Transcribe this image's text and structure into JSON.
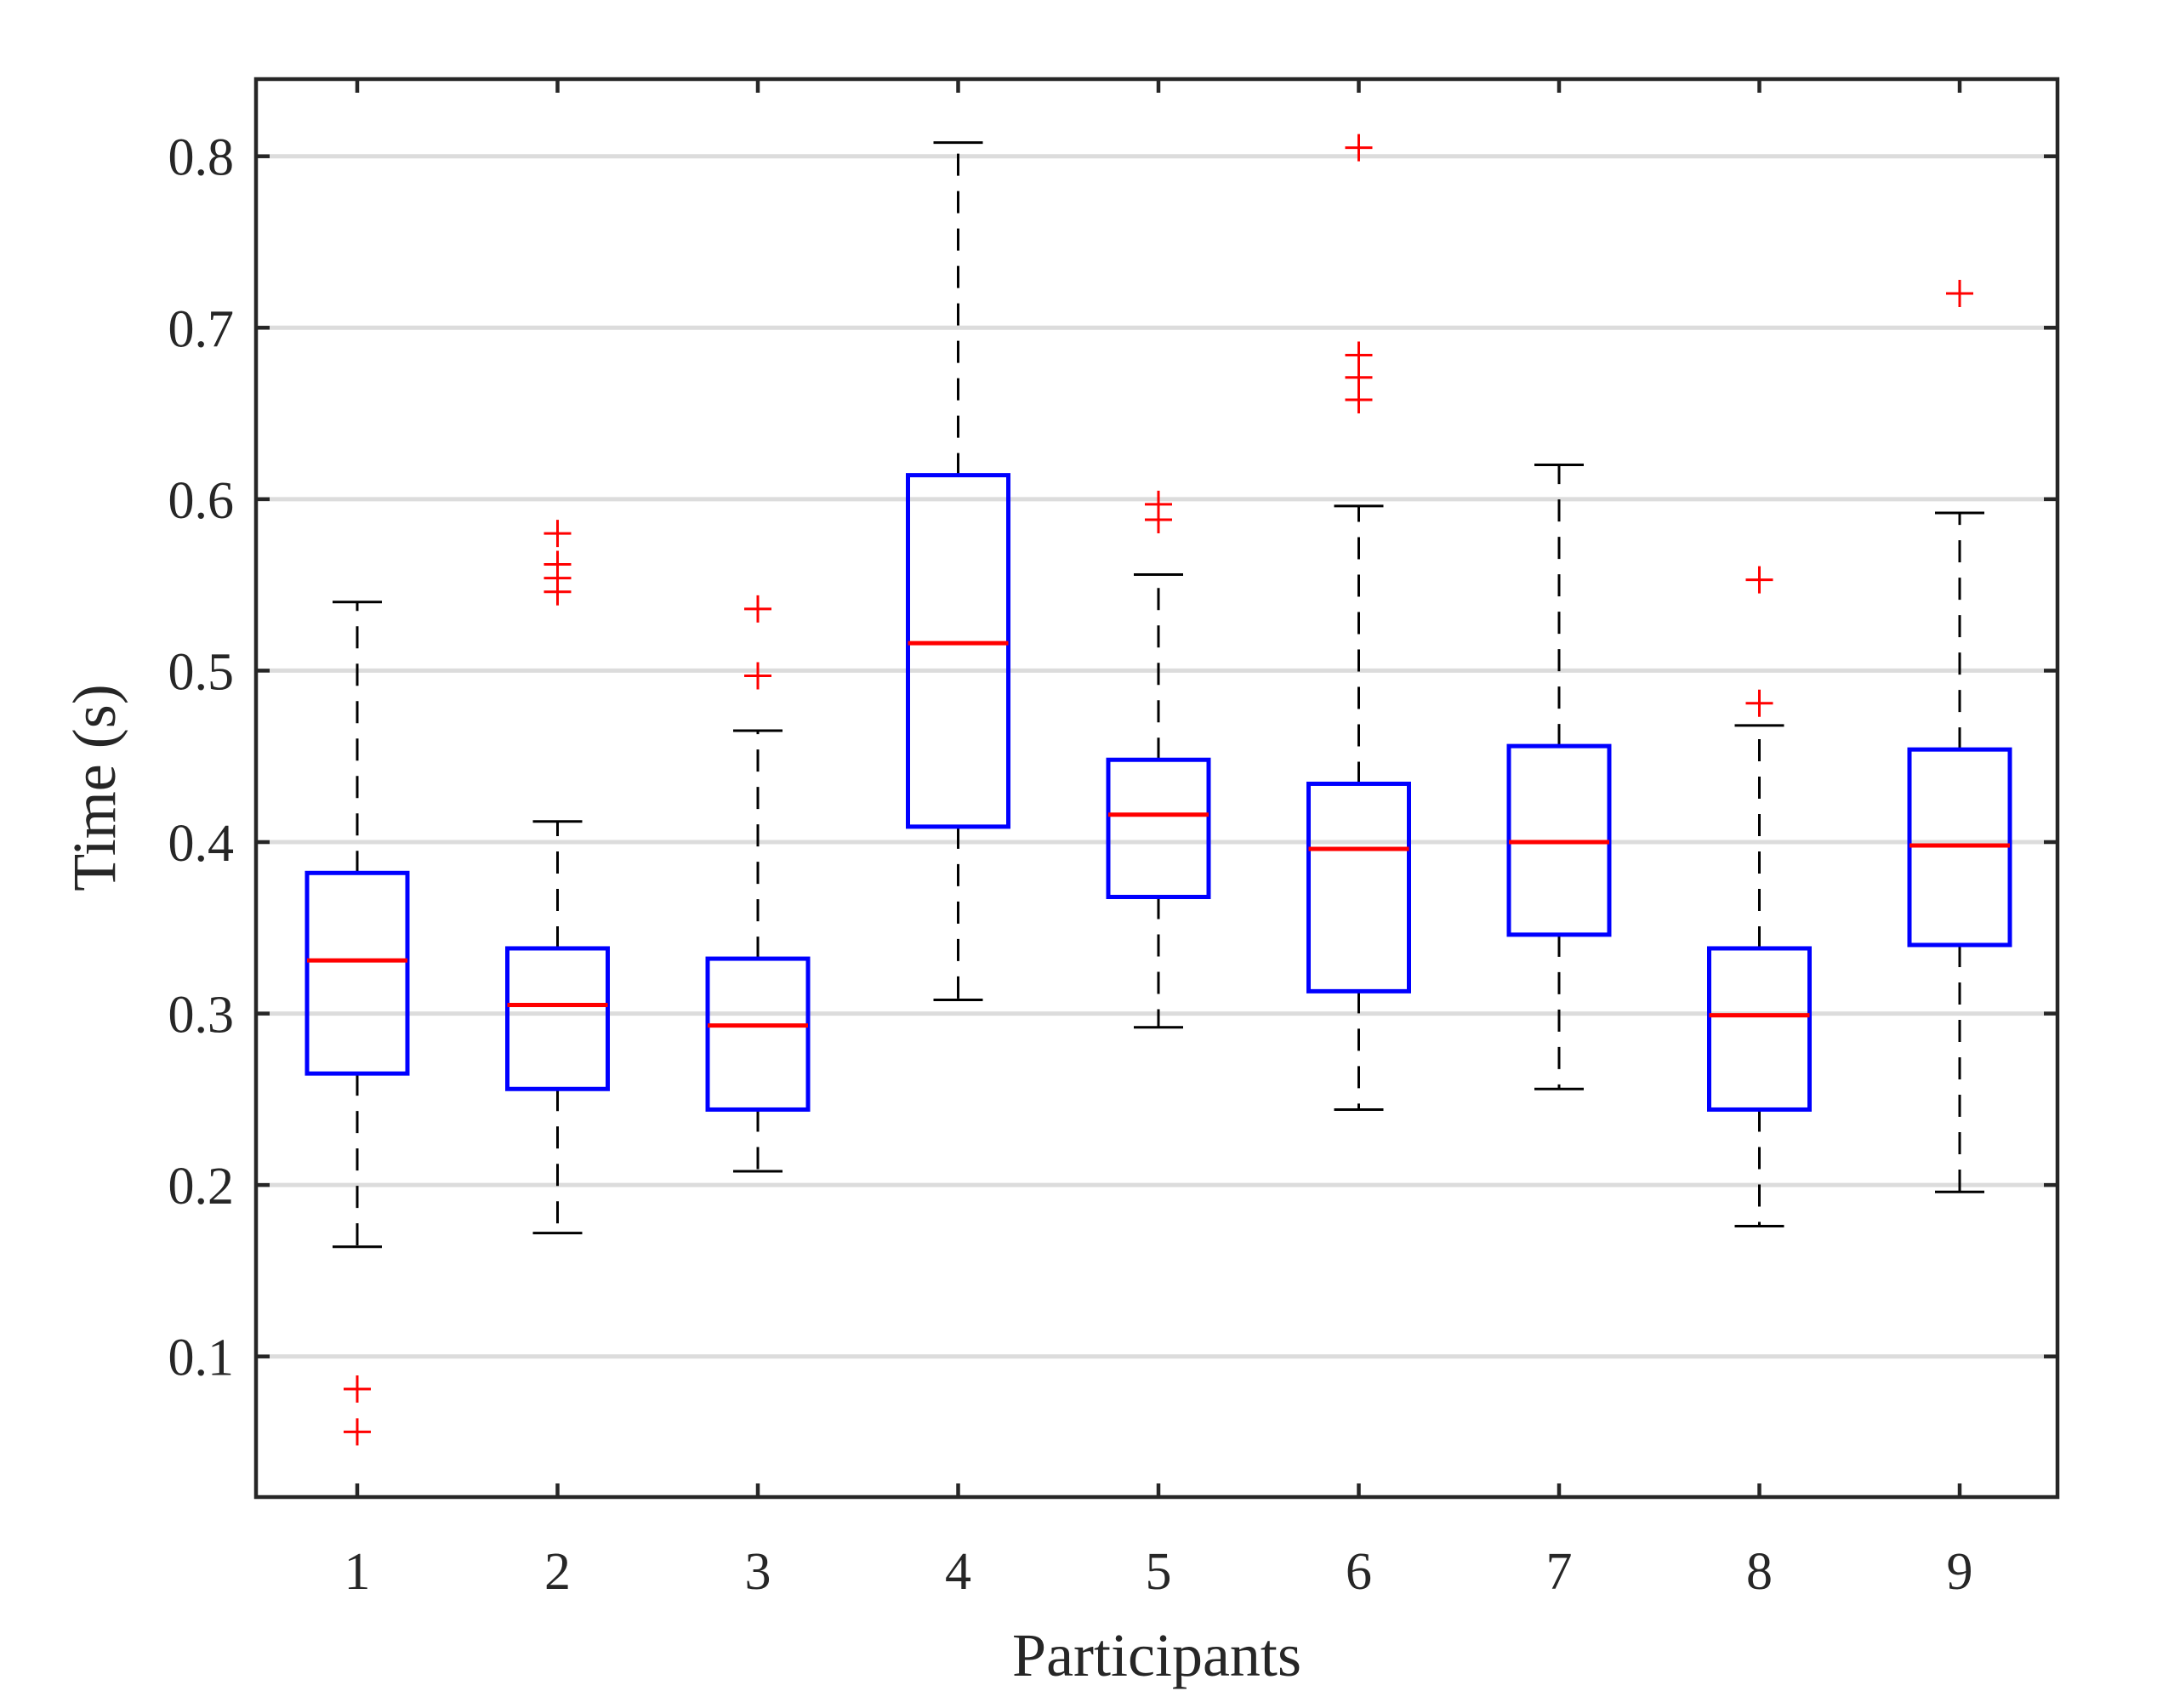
{
  "chart_data": {
    "type": "boxplot",
    "xlabel": "Participants",
    "ylabel": "Time (s)",
    "ylim": [
      0.018,
      0.845
    ],
    "yticks": [
      0.1,
      0.2,
      0.3,
      0.4,
      0.5,
      0.6,
      0.7,
      0.8
    ],
    "ytick_labels": [
      "0.1",
      "0.2",
      "0.3",
      "0.4",
      "0.5",
      "0.6",
      "0.7",
      "0.8"
    ],
    "grid": "horizontal",
    "categories": [
      "1",
      "2",
      "3",
      "4",
      "5",
      "6",
      "7",
      "8",
      "9"
    ],
    "boxes": [
      {
        "label": "1",
        "whisker_low": 0.164,
        "q1": 0.265,
        "median": 0.331,
        "q3": 0.382,
        "whisker_high": 0.54,
        "outliers": [
          0.056,
          0.081
        ]
      },
      {
        "label": "2",
        "whisker_low": 0.172,
        "q1": 0.256,
        "median": 0.305,
        "q3": 0.338,
        "whisker_high": 0.412,
        "outliers": [
          0.546,
          0.554,
          0.562,
          0.58
        ]
      },
      {
        "label": "3",
        "whisker_low": 0.208,
        "q1": 0.244,
        "median": 0.293,
        "q3": 0.332,
        "whisker_high": 0.465,
        "outliers": [
          0.497,
          0.536
        ]
      },
      {
        "label": "4",
        "whisker_low": 0.308,
        "q1": 0.409,
        "median": 0.516,
        "q3": 0.614,
        "whisker_high": 0.808,
        "outliers": []
      },
      {
        "label": "5",
        "whisker_low": 0.292,
        "q1": 0.368,
        "median": 0.416,
        "q3": 0.448,
        "whisker_high": 0.556,
        "outliers": [
          0.588,
          0.597
        ]
      },
      {
        "label": "6",
        "whisker_low": 0.244,
        "q1": 0.313,
        "median": 0.396,
        "q3": 0.434,
        "whisker_high": 0.596,
        "outliers": [
          0.658,
          0.671,
          0.684,
          0.805
        ]
      },
      {
        "label": "7",
        "whisker_low": 0.256,
        "q1": 0.346,
        "median": 0.4,
        "q3": 0.456,
        "whisker_high": 0.62,
        "outliers": []
      },
      {
        "label": "8",
        "whisker_low": 0.176,
        "q1": 0.244,
        "median": 0.299,
        "q3": 0.338,
        "whisker_high": 0.468,
        "outliers": [
          0.481,
          0.553
        ]
      },
      {
        "label": "9",
        "whisker_low": 0.196,
        "q1": 0.34,
        "median": 0.398,
        "q3": 0.454,
        "whisker_high": 0.592,
        "outliers": [
          0.72
        ]
      }
    ],
    "colors": {
      "box": "#0000ff",
      "median": "#ff0000",
      "outlier": "#ff0000",
      "whisker": "#000000",
      "grid": "#dcdcdc",
      "axis": "#262626"
    }
  }
}
